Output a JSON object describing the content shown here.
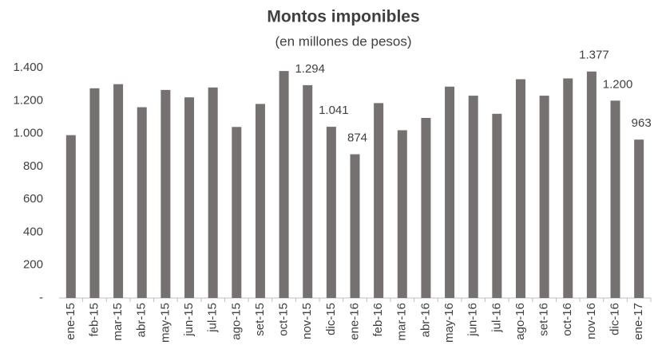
{
  "chart_data": {
    "type": "bar",
    "title": "Montos imponibles",
    "subtitle": "(en millones de pesos)",
    "categories": [
      "ene-15",
      "feb-15",
      "mar-15",
      "abr-15",
      "may-15",
      "jun-15",
      "jul-15",
      "ago-15",
      "set-15",
      "oct-15",
      "nov-15",
      "dic-15",
      "ene-16",
      "feb-16",
      "mar-16",
      "abr-16",
      "may-16",
      "jun-16",
      "jul-16",
      "ago-16",
      "set-16",
      "oct-16",
      "nov-16",
      "dic-16",
      "ene-17"
    ],
    "values": [
      990,
      1275,
      1300,
      1160,
      1265,
      1220,
      1280,
      1040,
      1180,
      1380,
      1294,
      1041,
      874,
      1185,
      1020,
      1095,
      1285,
      1230,
      1120,
      1330,
      1230,
      1335,
      1377,
      1200,
      963
    ],
    "value_labels": [
      null,
      null,
      null,
      null,
      null,
      null,
      null,
      null,
      null,
      null,
      "1.294",
      "1.041",
      "874",
      null,
      null,
      null,
      null,
      null,
      null,
      null,
      null,
      null,
      "1.377",
      "1.200",
      "963"
    ],
    "color": "#767171",
    "ylim": [
      0,
      1400
    ],
    "yticks": [
      {
        "value": 0,
        "label": "-"
      },
      200,
      400,
      600,
      800,
      {
        "value": 1000,
        "label": "1.000"
      },
      {
        "value": 1200,
        "label": "1.200"
      },
      {
        "value": 1400,
        "label": "1.400"
      }
    ],
    "grid": false
  }
}
